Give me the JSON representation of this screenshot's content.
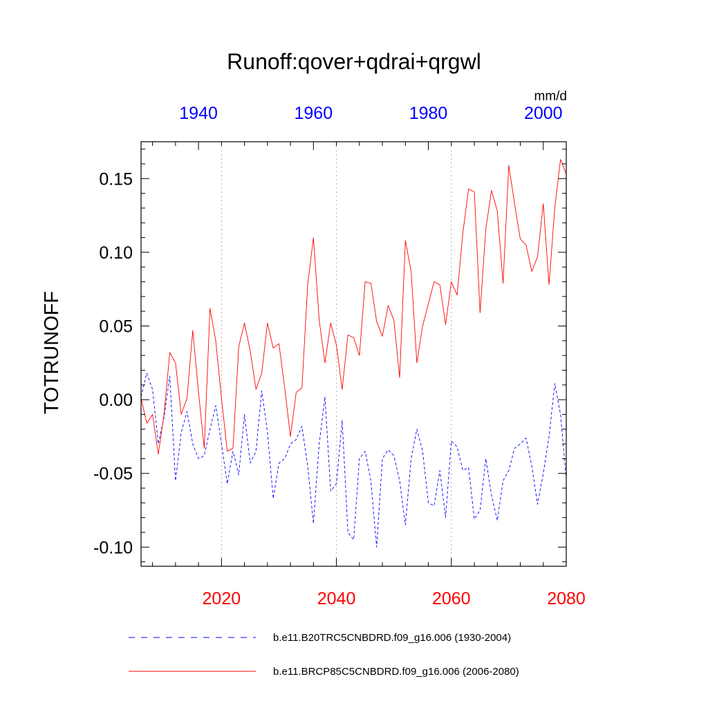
{
  "chart_data": {
    "type": "line",
    "title": "Runoff:qover+qdrai+qrgwl",
    "ylabel": "TOTRUNOFF",
    "units": "mm/d",
    "ylim": [
      -0.113,
      0.175
    ],
    "y_ticks": [
      "0.15",
      "0.10",
      "0.05",
      "0.00",
      "-0.05",
      "-0.10"
    ],
    "y_tick_values": [
      0.15,
      0.1,
      0.05,
      0.0,
      -0.05,
      -0.1
    ],
    "x_bottom": {
      "range": [
        2006,
        2080
      ],
      "ticks": [
        "2020",
        "2040",
        "2060",
        "2080"
      ],
      "tick_values": [
        2020,
        2040,
        2060,
        2080
      ],
      "color": "#ff0000"
    },
    "x_top": {
      "range": [
        1930,
        2004
      ],
      "ticks": [
        "1940",
        "1960",
        "1980",
        "2000"
      ],
      "tick_values": [
        1940,
        1960,
        1980,
        2000
      ],
      "color": "#0000ff"
    },
    "grid": "vertical dotted at major bottom ticks",
    "legend_position": "bottom",
    "series": [
      {
        "name": "b.e11.B20TRC5CNBDRD.f09_g16.006 (1930-2004)",
        "axis": "top",
        "color": "#0000ff",
        "dash": "dashed",
        "x_start": 1930,
        "values": [
          0.002,
          0.018,
          0.007,
          -0.03,
          -0.012,
          0.016,
          -0.055,
          -0.022,
          -0.008,
          -0.03,
          -0.04,
          -0.038,
          -0.02,
          -0.004,
          -0.03,
          -0.057,
          -0.035,
          -0.051,
          -0.01,
          -0.043,
          -0.035,
          0.006,
          -0.022,
          -0.067,
          -0.043,
          -0.04,
          -0.03,
          -0.027,
          -0.018,
          -0.045,
          -0.084,
          -0.03,
          0.002,
          -0.062,
          -0.057,
          -0.014,
          -0.09,
          -0.095,
          -0.04,
          -0.035,
          -0.055,
          -0.1,
          -0.04,
          -0.034,
          -0.038,
          -0.055,
          -0.085,
          -0.04,
          -0.02,
          -0.035,
          -0.07,
          -0.072,
          -0.048,
          -0.08,
          -0.028,
          -0.032,
          -0.048,
          -0.046,
          -0.081,
          -0.075,
          -0.04,
          -0.065,
          -0.082,
          -0.055,
          -0.048,
          -0.033,
          -0.03,
          -0.026,
          -0.045,
          -0.071,
          -0.05,
          -0.025,
          0.011,
          -0.01,
          -0.054
        ]
      },
      {
        "name": "b.e11.BRCP85C5CNBDRD.f09_g16.006 (2006-2080)",
        "axis": "bottom",
        "color": "#ff0000",
        "dash": "solid",
        "x_start": 2006,
        "values": [
          0.001,
          -0.016,
          -0.01,
          -0.037,
          -0.01,
          0.032,
          0.025,
          -0.01,
          0.001,
          0.047,
          0.005,
          -0.033,
          0.062,
          0.04,
          0.001,
          -0.035,
          -0.033,
          0.036,
          0.052,
          0.033,
          0.007,
          0.018,
          0.052,
          0.035,
          0.038,
          0.008,
          -0.025,
          0.005,
          0.008,
          0.078,
          0.11,
          0.054,
          0.025,
          0.052,
          0.037,
          0.007,
          0.044,
          0.042,
          0.03,
          0.08,
          0.079,
          0.053,
          0.043,
          0.064,
          0.054,
          0.015,
          0.108,
          0.087,
          0.025,
          0.05,
          0.065,
          0.08,
          0.078,
          0.051,
          0.08,
          0.071,
          0.113,
          0.143,
          0.141,
          0.059,
          0.116,
          0.142,
          0.128,
          0.079,
          0.159,
          0.133,
          0.109,
          0.105,
          0.087,
          0.097,
          0.133,
          0.078,
          0.13,
          0.163,
          0.153
        ]
      }
    ]
  }
}
